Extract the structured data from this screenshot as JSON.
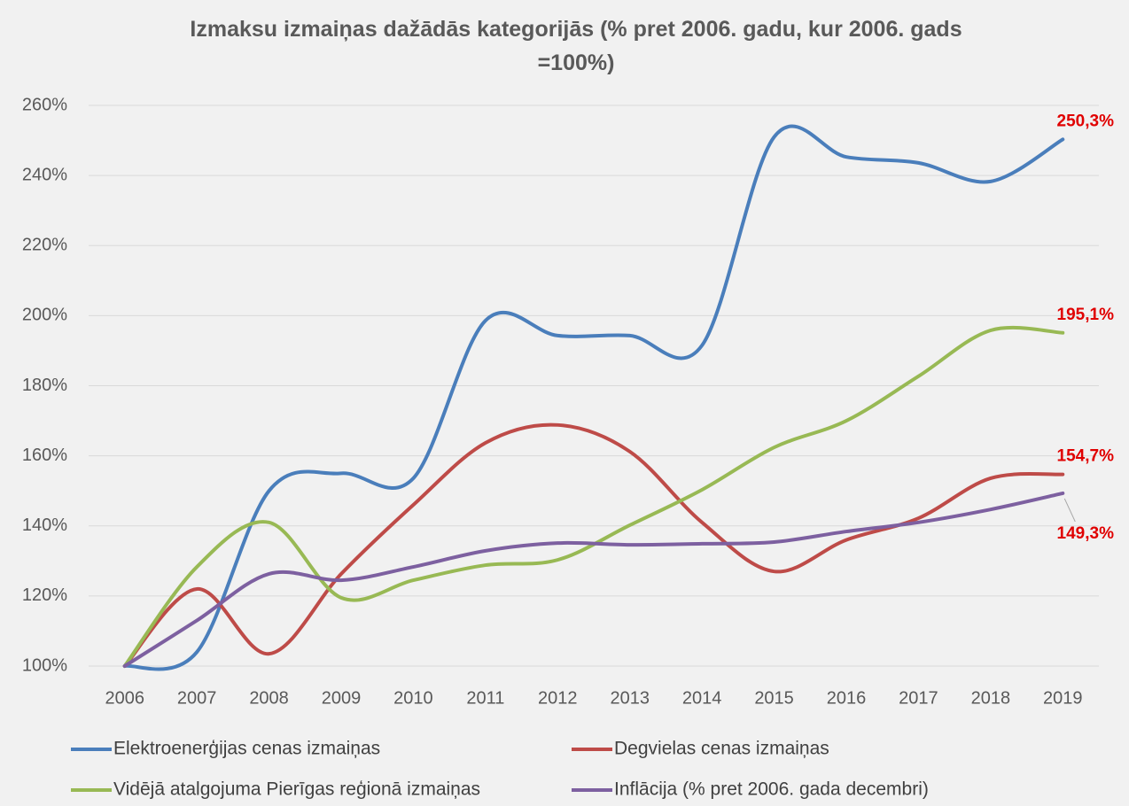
{
  "chart_data": {
    "type": "line",
    "title": "Izmaksu izmaiņas dažādās kategorijās (% pret 2006. gadu, kur 2006. gads =100%)",
    "categories": [
      "2006",
      "2007",
      "2008",
      "2009",
      "2010",
      "2011",
      "2012",
      "2013",
      "2014",
      "2015",
      "2016",
      "2017",
      "2018",
      "2019"
    ],
    "ylim": [
      100,
      260
    ],
    "yticks": [
      {
        "value": 100,
        "label": "100%"
      },
      {
        "value": 120,
        "label": "120%"
      },
      {
        "value": 140,
        "label": "140%"
      },
      {
        "value": 160,
        "label": "160%"
      },
      {
        "value": 180,
        "label": "180%"
      },
      {
        "value": 200,
        "label": "200%"
      },
      {
        "value": 220,
        "label": "220%"
      },
      {
        "value": 240,
        "label": "240%"
      },
      {
        "value": 260,
        "label": "260%"
      }
    ],
    "grid": true,
    "smooth": true,
    "legend": "bottom",
    "series": [
      {
        "name": "Elektroenerģijas cenas izmaiņas",
        "color": "#4a7ebb",
        "values": [
          100,
          104,
          150,
          155,
          153.6,
          198.6,
          194.3,
          194.3,
          191.5,
          251,
          245.3,
          243.6,
          238.3,
          250.3
        ],
        "value_labels": [
          null,
          null,
          null,
          null,
          null,
          null,
          null,
          null,
          null,
          null,
          null,
          null,
          null,
          "250,3%"
        ]
      },
      {
        "name": "Degvielas cenas izmaiņas",
        "color": "#be4b48",
        "values": [
          100,
          122,
          103.5,
          126.3,
          146,
          163.7,
          168.8,
          161.2,
          141,
          127,
          136,
          142.2,
          153.6,
          154.7
        ],
        "value_labels": [
          null,
          null,
          null,
          null,
          null,
          null,
          null,
          null,
          null,
          null,
          null,
          null,
          null,
          "154,7%"
        ]
      },
      {
        "name": "Vidējā atalgojuma Pierīgas reģionā izmaiņas",
        "color": "#98b954",
        "values": [
          100,
          128.3,
          141,
          119.5,
          124.5,
          128.8,
          130.3,
          140.2,
          150.3,
          162.4,
          170,
          182.7,
          195.8,
          195.1
        ],
        "value_labels": [
          null,
          null,
          null,
          null,
          null,
          null,
          null,
          null,
          null,
          null,
          null,
          null,
          null,
          "195,1%"
        ]
      },
      {
        "name": "Inflācija (% pret 2006. gada decembri)",
        "color": "#7d60a0",
        "values": [
          100,
          113,
          126.3,
          124.5,
          128.3,
          132.9,
          135.1,
          134.6,
          134.9,
          135.4,
          138.4,
          141,
          144.7,
          149.3
        ],
        "value_labels": [
          null,
          null,
          null,
          null,
          null,
          null,
          null,
          null,
          null,
          null,
          null,
          null,
          null,
          "149,3%"
        ]
      }
    ]
  }
}
